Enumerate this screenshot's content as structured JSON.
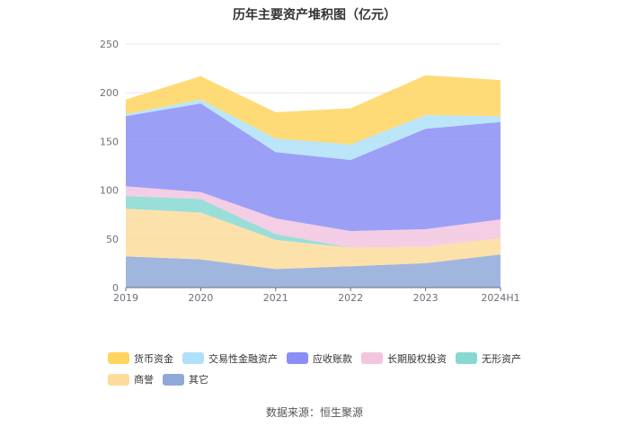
{
  "chart_data": {
    "type": "area",
    "stacked": true,
    "title": "历年主要资产堆积图（亿元）",
    "xlabel": "",
    "ylabel": "",
    "categories": [
      "2019",
      "2020",
      "2021",
      "2022",
      "2023",
      "2024H1"
    ],
    "ylim": [
      0,
      250
    ],
    "yticks": [
      0,
      50,
      100,
      150,
      200,
      250
    ],
    "grid": true,
    "legend_position": "bottom",
    "series": [
      {
        "name": "其它",
        "color": "#8fa9d9",
        "values": [
          32,
          29,
          19,
          22,
          25,
          34
        ]
      },
      {
        "name": "商誉",
        "color": "#fddc9b",
        "values": [
          49,
          48,
          30,
          19,
          17,
          17
        ]
      },
      {
        "name": "无形资产",
        "color": "#88d8d2",
        "values": [
          13,
          14,
          6,
          0,
          0,
          0
        ]
      },
      {
        "name": "长期股权投资",
        "color": "#f2c6df",
        "values": [
          10,
          7,
          16,
          17,
          18,
          19
        ]
      },
      {
        "name": "应收账款",
        "color": "#8b8ef5",
        "values": [
          72,
          91,
          68,
          73,
          103,
          100
        ]
      },
      {
        "name": "交易性金融资产",
        "color": "#afe1f8",
        "values": [
          2,
          4,
          14,
          16,
          14,
          6
        ]
      },
      {
        "name": "货币资金",
        "color": "#fed55f",
        "values": [
          15,
          24,
          27,
          37,
          41,
          37
        ]
      }
    ],
    "legend_order": [
      "货币资金",
      "交易性金融资产",
      "应收账款",
      "长期股权投资",
      "无形资产",
      "商誉",
      "其它"
    ]
  },
  "source": "数据来源：恒生聚源"
}
